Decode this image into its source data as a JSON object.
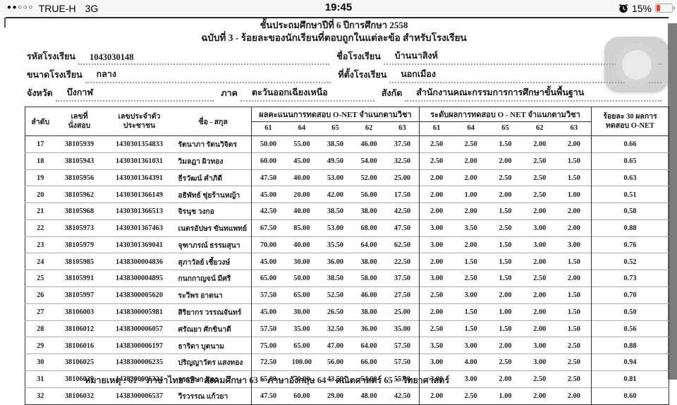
{
  "status_bar": {
    "signal_dots": "●●○○○",
    "carrier": "TRUE-H",
    "network": "3G",
    "time": "19:45",
    "battery_percent": "15%",
    "battery_color": "#e8432d"
  },
  "doc": {
    "title1": "ชั้นประถมศึกษาปีที่ 6  ปีการศึกษา 2558",
    "title2": "ฉบับที่ 3 - ร้อยละของนักเรียนที่ตอบถูกในแต่ละข้อ สำหรับโรงเรียน",
    "fields": {
      "school_code": {
        "label": "รหัสโรงเรียน",
        "value": "1043030148"
      },
      "school_name": {
        "label": "ชื่อโรงเรียน",
        "value": "บ้านนาสิงห์"
      },
      "school_size": {
        "label": "ขนาดโรงเรียน",
        "value": "กลาง"
      },
      "school_location": {
        "label": "ที่ตั้งโรงเรียน",
        "value": "นอกเมือง"
      },
      "province": {
        "label": "จังหวัด",
        "value": "บึงกาฬ"
      },
      "region": {
        "label": "ภาค",
        "value": "ตะวันออกเฉียงเหนือ"
      },
      "affiliation": {
        "label": "สังกัด",
        "value": "สำนักงานคณะกรรมการการศึกษาขั้นพื้นฐาน"
      }
    }
  },
  "table": {
    "head": {
      "no": "ลำดับ",
      "seat1": "เลขที่",
      "seat2": "นั่งสอบ",
      "cid1": "เลขประจำตัว",
      "cid2": "ประชาชน",
      "name": "ชื่อ - สกุล",
      "group_scores": "ผลคะแนนการทดสอบ O-NET จำแนกตามวิชา",
      "group_levels": "ระดับผลการทดสอบ O - NET จำแนกตามวิชา",
      "pct1": "ร้อยละ 30 ผลการ",
      "pct2": "ทดสอบ O-NET"
    },
    "subjects": [
      "61",
      "64",
      "65",
      "62",
      "63"
    ],
    "rows": [
      {
        "no": "17",
        "seat": "38105939",
        "cid": "1430301354833",
        "name": "รัตนาภา รัตนวิจิตร",
        "scores": [
          "50.00",
          "55.00",
          "38.50",
          "46.00",
          "37.50"
        ],
        "levels": [
          "2.50",
          "2.50",
          "1.50",
          "2.00",
          "2.00"
        ],
        "pct": "0.66"
      },
      {
        "no": "18",
        "seat": "38105943",
        "cid": "1430301361031",
        "name": "วิมลฎา ผิวทอง",
        "scores": [
          "60.00",
          "45.00",
          "49.50",
          "54.00",
          "32.50"
        ],
        "levels": [
          "2.50",
          "2.00",
          "2.00",
          "2.50",
          "1.50"
        ],
        "pct": "0.65"
      },
      {
        "no": "19",
        "seat": "38105956",
        "cid": "1430301364391",
        "name": "ธีรวัฒน์ คำภิดี",
        "scores": [
          "47.50",
          "40.00",
          "53.00",
          "52.00",
          "25.00"
        ],
        "levels": [
          "2.00",
          "2.00",
          "2.50",
          "2.50",
          "1.50"
        ],
        "pct": "0.63"
      },
      {
        "no": "20",
        "seat": "38105962",
        "cid": "1430301366149",
        "name": "อธิพัทธ์ ชุ่ยร้านหญ้า",
        "scores": [
          "45.00",
          "20.00",
          "42.00",
          "56.00",
          "17.50"
        ],
        "levels": [
          "2.00",
          "1.00",
          "2.00",
          "2.50",
          "1.00"
        ],
        "pct": "0.51"
      },
      {
        "no": "21",
        "seat": "38105968",
        "cid": "1430301366513",
        "name": "จิรนุช วงกอ",
        "scores": [
          "42.50",
          "40.00",
          "38.50",
          "38.00",
          "42.50"
        ],
        "levels": [
          "2.00",
          "2.00",
          "1.50",
          "2.00",
          "2.00"
        ],
        "pct": "0.58"
      },
      {
        "no": "22",
        "seat": "38105973",
        "cid": "1430301367463",
        "name": "เนตรอัปษร ขันทแพทย์",
        "scores": [
          "67.50",
          "85.00",
          "53.00",
          "68.00",
          "47.50"
        ],
        "levels": [
          "3.00",
          "3.50",
          "2.50",
          "3.00",
          "2.00"
        ],
        "pct": "0.88"
      },
      {
        "no": "23",
        "seat": "38105979",
        "cid": "1430301369041",
        "name": "จุฑาภรณ์ ธรรมสุนา",
        "scores": [
          "70.00",
          "40.00",
          "35.50",
          "64.00",
          "62.50"
        ],
        "levels": [
          "3.00",
          "2.00",
          "1.50",
          "3.00",
          "3.00"
        ],
        "pct": "0.76"
      },
      {
        "no": "24",
        "seat": "38105985",
        "cid": "1438300004836",
        "name": "สุภาวัลย์ เชี้ยวงษ์",
        "scores": [
          "45.00",
          "30.00",
          "36.00",
          "38.00",
          "22.50"
        ],
        "levels": [
          "2.00",
          "1.50",
          "1.50",
          "2.00",
          "1.50"
        ],
        "pct": "0.52"
      },
      {
        "no": "25",
        "seat": "38105991",
        "cid": "1438300004895",
        "name": "กนกกาญจน์ มีศรี",
        "scores": [
          "65.00",
          "50.00",
          "38.50",
          "58.00",
          "37.50"
        ],
        "levels": [
          "3.00",
          "2.50",
          "1.50",
          "2.50",
          "2.00"
        ],
        "pct": "0.73"
      },
      {
        "no": "26",
        "seat": "38105997",
        "cid": "1438300005620",
        "name": "ระวีพร อาตนา",
        "scores": [
          "57.50",
          "65.00",
          "52.50",
          "46.00",
          "27.50"
        ],
        "levels": [
          "2.50",
          "3.00",
          "2.00",
          "2.00",
          "1.50"
        ],
        "pct": "0.70"
      },
      {
        "no": "27",
        "seat": "38106003",
        "cid": "1438300005981",
        "name": "สิริยากร วรรณจันทร์",
        "scores": [
          "45.00",
          "30.00",
          "26.50",
          "38.00",
          "25.00"
        ],
        "levels": [
          "2.00",
          "1.50",
          "1.00",
          "2.00",
          "1.50"
        ],
        "pct": "0.50"
      },
      {
        "no": "28",
        "seat": "38106012",
        "cid": "1438300006057",
        "name": "ศรัณยา ศักขินาดี",
        "scores": [
          "57.50",
          "35.00",
          "32.50",
          "36.00",
          "35.00"
        ],
        "levels": [
          "2.50",
          "1.50",
          "1.50",
          "2.00",
          "1.50"
        ],
        "pct": "0.56"
      },
      {
        "no": "29",
        "seat": "38106016",
        "cid": "1438300006197",
        "name": "ธาริดา บุตนาม",
        "scores": [
          "75.00",
          "65.00",
          "47.00",
          "64.00",
          "57.50"
        ],
        "levels": [
          "3.50",
          "3.00",
          "2.00",
          "3.00",
          "2.50"
        ],
        "pct": "0.88"
      },
      {
        "no": "30",
        "seat": "38106025",
        "cid": "1438300006235",
        "name": "ปริญญาวัตร แสงทอง",
        "scores": [
          "72.50",
          "100.00",
          "56.00",
          "66.00",
          "57.50"
        ],
        "levels": [
          "3.00",
          "4.00",
          "2.50",
          "3.00",
          "2.50"
        ],
        "pct": "0.94"
      },
      {
        "no": "31",
        "seat": "38106029",
        "cid": "1438300006324",
        "name": "วรรพิษา สุดา",
        "scores": [
          "65.00",
          "70.00",
          "43.50",
          "54.00",
          "55.00"
        ],
        "levels": [
          "3.00",
          "3.00",
          "2.00",
          "2.50",
          "2.50"
        ],
        "pct": "0.81"
      },
      {
        "no": "32",
        "seat": "38106032",
        "cid": "1438300006537",
        "name": "วีรวรรณ แก้วยา",
        "scores": [
          "47.50",
          "60.00",
          "29.00",
          "48.00",
          "42.50"
        ],
        "levels": [
          "2.00",
          "2.50",
          "1.00",
          "2.00",
          "2.00"
        ],
        "pct": "0.60"
      }
    ]
  },
  "footnote": {
    "text": "หมายเหตุ : 61 = ภาษาไทย  62 = สังคมศึกษา  63 = ภาษาอังกฤษ  64 = คณิตศาสตร์  65 = วิทยาศาสตร์"
  }
}
